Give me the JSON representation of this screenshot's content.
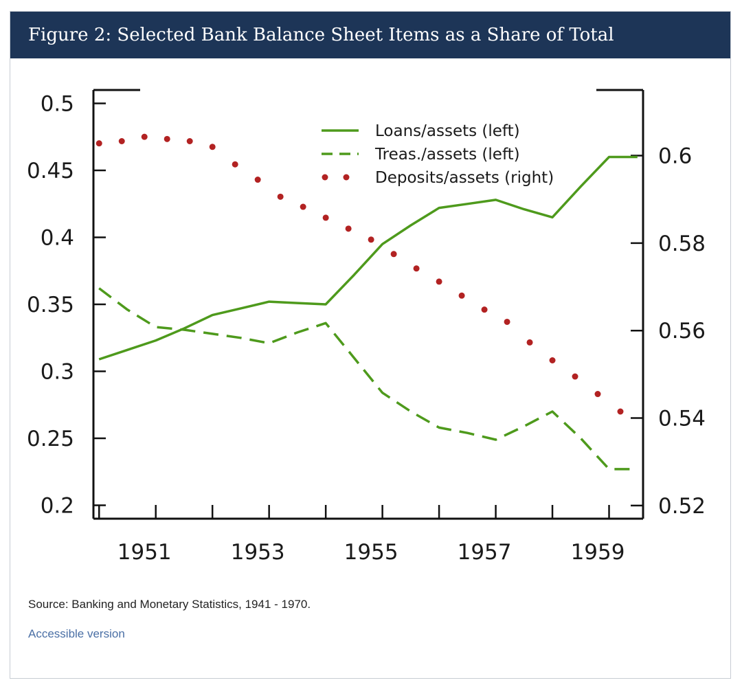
{
  "header": {
    "title": "Figure 2: Selected Bank Balance Sheet Items as a Share of Total"
  },
  "footer": {
    "source": "Source: Banking and Monetary Statistics, 1941 - 1970.",
    "accessible_link": "Accessible version"
  },
  "colors": {
    "header_bg": "#1d3557",
    "series_green": "#4e9a1c",
    "series_red": "#b22222",
    "link": "#4a6fa5"
  },
  "chart_data": {
    "type": "line",
    "title": "Figure 2: Selected Bank Balance Sheet Items as a Share of Total",
    "xlabel": "",
    "ylabel_left": "",
    "ylabel_right": "",
    "x_ticks": [
      "1951",
      "1953",
      "1955",
      "1957",
      "1959"
    ],
    "x_tick_values": [
      1951,
      1953,
      1955,
      1957,
      1959
    ],
    "xlim": [
      1950.4,
      1960.1
    ],
    "ylim_left": [
      0.19,
      0.51
    ],
    "ylim_right": [
      0.517,
      0.615
    ],
    "y_ticks_left": [
      "0.5",
      "0.45",
      "0.4",
      "0.35",
      "0.3",
      "0.25",
      "0.2"
    ],
    "y_tick_values_left": [
      0.5,
      0.45,
      0.4,
      0.35,
      0.3,
      0.25,
      0.2
    ],
    "y_ticks_right": [
      "0.6",
      "0.58",
      "0.56",
      "0.54",
      "0.52"
    ],
    "y_tick_values_right": [
      0.6,
      0.58,
      0.56,
      0.54,
      0.52
    ],
    "legend_position": "top-right",
    "series": [
      {
        "name": "Loans/assets (left)",
        "axis": "left",
        "style": "solid",
        "x": [
          1950.5,
          1951,
          1951.5,
          1952,
          1952.5,
          1953,
          1953.5,
          1954,
          1954.5,
          1955,
          1955.5,
          1956,
          1956.5,
          1957,
          1957.5,
          1958,
          1958.5,
          1959,
          1959.5,
          1960
        ],
        "values": [
          0.309,
          0.316,
          0.323,
          0.332,
          0.342,
          0.347,
          0.352,
          0.351,
          0.35,
          0.372,
          0.395,
          0.409,
          0.422,
          0.425,
          0.428,
          0.421,
          0.415,
          0.438,
          0.46,
          0.46
        ]
      },
      {
        "name": "Treas./assets (left)",
        "axis": "left",
        "style": "dashed",
        "x": [
          1950.5,
          1951,
          1951.5,
          1952,
          1952.5,
          1953,
          1953.5,
          1954,
          1954.5,
          1955,
          1955.5,
          1956,
          1956.5,
          1957,
          1957.5,
          1958,
          1958.5,
          1959,
          1959.5,
          1960
        ],
        "values": [
          0.362,
          0.346,
          0.333,
          0.331,
          0.328,
          0.325,
          0.321,
          0.329,
          0.336,
          0.31,
          0.284,
          0.27,
          0.258,
          0.254,
          0.249,
          0.259,
          0.27,
          0.25,
          0.227,
          0.227
        ]
      },
      {
        "name": "Deposits/assets (right)",
        "axis": "right",
        "style": "dotted",
        "x": [
          1950.5,
          1950.9,
          1951.3,
          1951.7,
          1952.1,
          1952.5,
          1952.9,
          1953.3,
          1953.7,
          1954.1,
          1954.5,
          1954.9,
          1955.3,
          1955.7,
          1956.1,
          1956.5,
          1956.9,
          1957.3,
          1957.7,
          1958.1,
          1958.5,
          1958.9,
          1959.3,
          1959.7
        ],
        "values": [
          0.6028,
          0.6033,
          0.6043,
          0.6038,
          0.6033,
          0.602,
          0.598,
          0.5945,
          0.5906,
          0.5883,
          0.5858,
          0.5833,
          0.5808,
          0.5775,
          0.5742,
          0.5712,
          0.568,
          0.5648,
          0.562,
          0.5573,
          0.5532,
          0.5495,
          0.5455,
          0.5415
        ]
      }
    ]
  }
}
